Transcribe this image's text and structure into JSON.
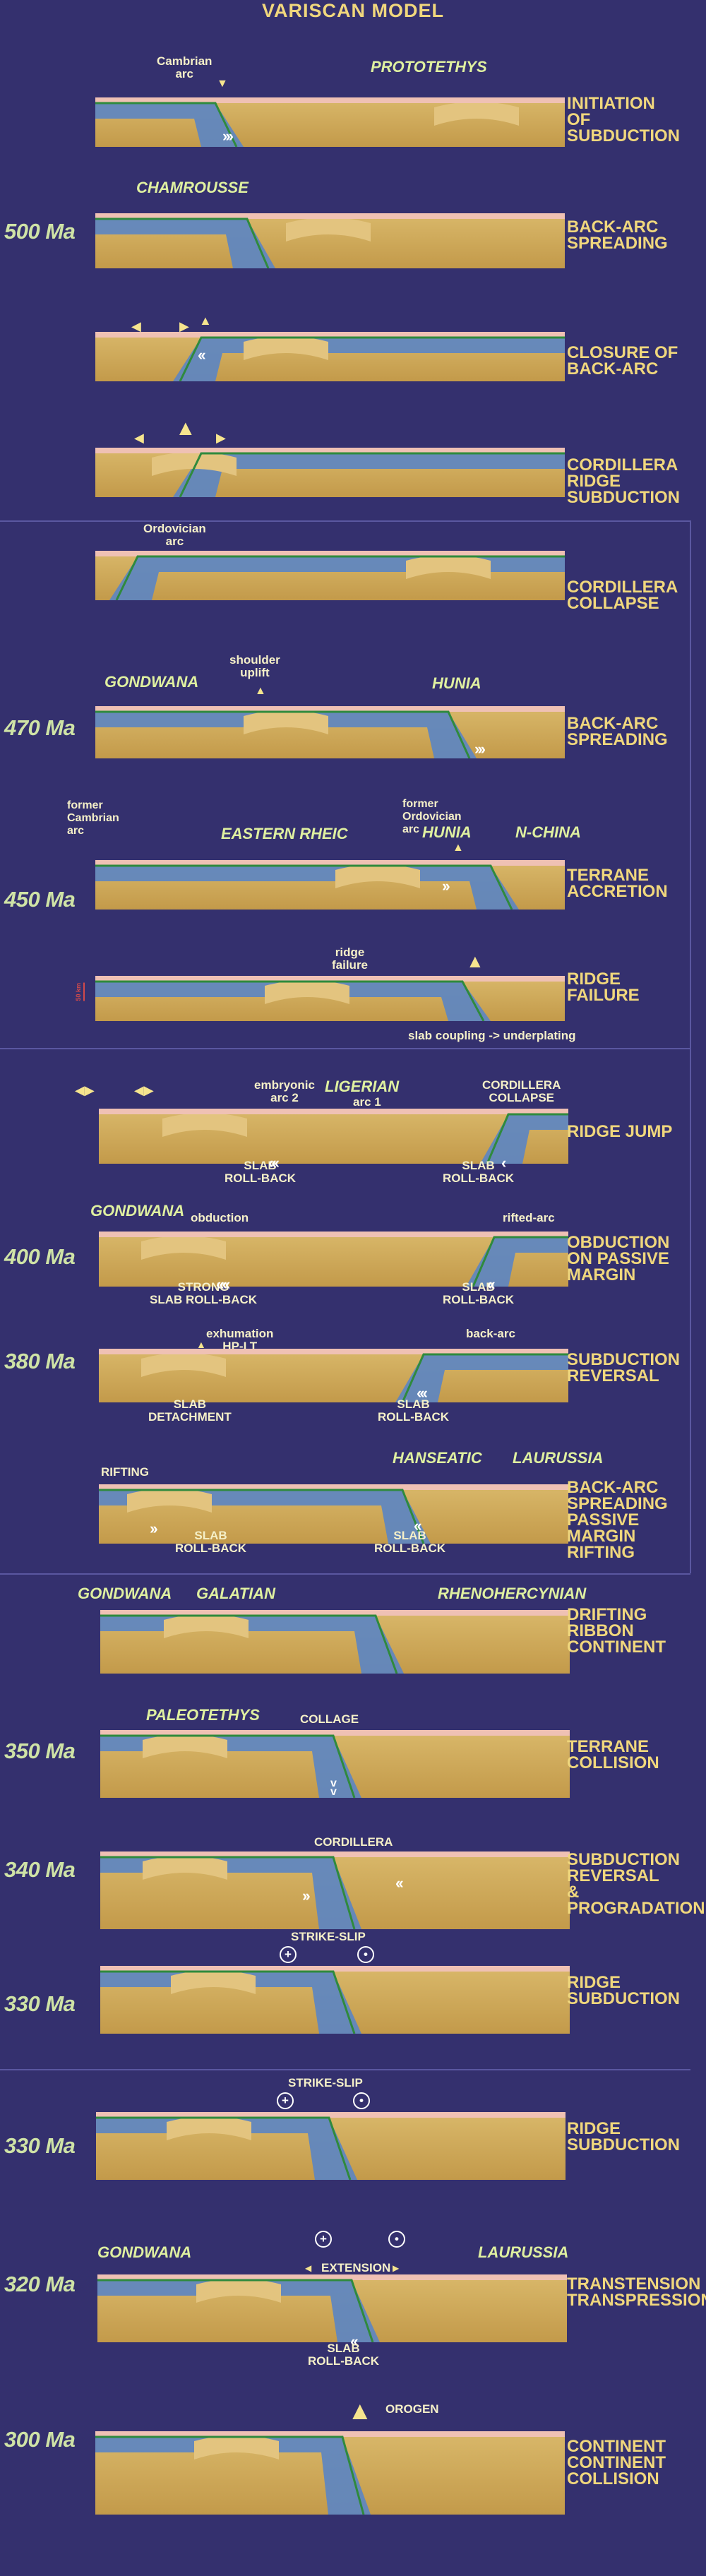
{
  "title": "VARISCAN MODEL",
  "colors": {
    "background": "#34306e",
    "stage_text": "#f0d77d",
    "age_text": "#cfe3a6",
    "mantle": "#c39a4a",
    "slab": "#5d86c1",
    "crust": "#efc1b4",
    "suture": "#2f8a3d"
  },
  "panels": [
    {
      "age": "",
      "stage": "INITIATION\nOF\nSUBDUCTION",
      "labels": [
        "Cambrian\narc",
        "PROTOTETHYS"
      ]
    },
    {
      "age": "500 Ma",
      "stage": "BACK-ARC\nSPREADING",
      "labels": [
        "CHAMROUSSE"
      ]
    },
    {
      "age": "",
      "stage": "CLOSURE OF\nBACK-ARC",
      "labels": []
    },
    {
      "age": "",
      "stage": "CORDILLERA\nRIDGE\nSUBDUCTION",
      "labels": []
    },
    {
      "age": "",
      "stage": "CORDILLERA\nCOLLAPSE",
      "labels": [
        "Ordovician\narc"
      ]
    },
    {
      "age": "470 Ma",
      "stage": "BACK-ARC\nSPREADING",
      "labels": [
        "GONDWANA",
        "shoulder\nuplift",
        "HUNIA"
      ]
    },
    {
      "age": "450 Ma",
      "stage": "TERRANE\nACCRETION",
      "labels": [
        "former\nCambrian\narc",
        "EASTERN RHEIC",
        "former\nOrdovician\narc",
        "HUNIA",
        "N-CHINA"
      ]
    },
    {
      "age": "",
      "stage": "RIDGE\nFAILURE",
      "labels": [
        "ridge\nfailure",
        "slab coupling -> underplating",
        "50 km"
      ]
    },
    {
      "age": "",
      "stage": "RIDGE JUMP",
      "labels": [
        "embryonic\narc 2",
        "LIGERIAN",
        "arc 1",
        "CORDILLERA\nCOLLAPSE",
        "SLAB\nROLL-BACK",
        "SLAB\nROLL-BACK"
      ]
    },
    {
      "age": "400 Ma",
      "stage": "OBDUCTION\nON PASSIVE\nMARGIN",
      "labels": [
        "GONDWANA",
        "obduction",
        "rifted-arc",
        "STRONG\nSLAB ROLL-BACK",
        "SLAB\nROLL-BACK"
      ]
    },
    {
      "age": "380 Ma",
      "stage": "SUBDUCTION\nREVERSAL",
      "labels": [
        "exhumation\nHP-LT",
        "back-arc",
        "SLAB\nDETACHMENT",
        "SLAB\nROLL-BACK"
      ]
    },
    {
      "age": "",
      "stage": "BACK-ARC\nSPREADING\nPASSIVE\nMARGIN\nRIFTING",
      "labels": [
        "RIFTING",
        "HANSEATIC",
        "LAURUSSIA",
        "SLAB\nROLL-BACK",
        "SLAB\nROLL-BACK"
      ]
    },
    {
      "age": "",
      "stage": "DRIFTING\nRIBBON\nCONTINENT",
      "labels": [
        "GONDWANA",
        "GALATIAN",
        "RHENOHERCYNIAN"
      ]
    },
    {
      "age": "350 Ma",
      "stage": "TERRANE\nCOLLISION",
      "labels": [
        "PALEOTETHYS",
        "COLLAGE"
      ]
    },
    {
      "age": "340 Ma",
      "stage": "SUBDUCTION\nREVERSAL\n&\nPROGRADATION",
      "labels": [
        "CORDILLERA"
      ]
    },
    {
      "age": "330 Ma",
      "stage": "RIDGE\nSUBDUCTION",
      "labels": [
        "STRIKE-SLIP"
      ]
    },
    {
      "age": "330 Ma",
      "stage": "RIDGE\nSUBDUCTION",
      "labels": [
        "STRIKE-SLIP"
      ]
    },
    {
      "age": "320 Ma",
      "stage": "TRANSTENSION\nTRANSPRESSION",
      "labels": [
        "GONDWANA",
        "EXTENSION",
        "LAURUSSIA",
        "SLAB\nROLL-BACK"
      ]
    },
    {
      "age": "300 Ma",
      "stage": "CONTINENT\nCONTINENT\nCOLLISION",
      "labels": [
        "OROGEN"
      ]
    }
  ]
}
